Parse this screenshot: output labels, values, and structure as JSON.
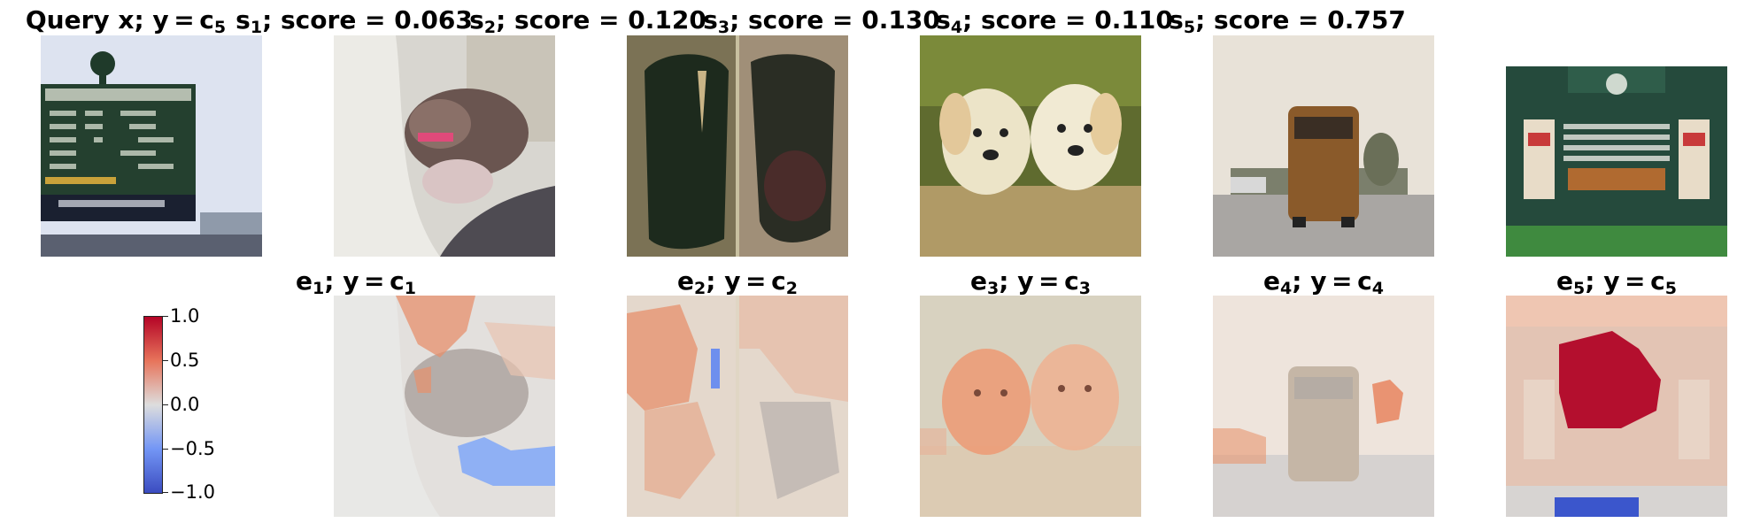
{
  "row1": {
    "query": {
      "prefix": "Query x; y = c",
      "sub": "5"
    },
    "samples": [
      {
        "name": "s",
        "sub": "1",
        "score_text": "; score = 0.063",
        "score": 0.063
      },
      {
        "name": "s",
        "sub": "2",
        "score_text": "; score = 0.120",
        "score": 0.12
      },
      {
        "name": "s",
        "sub": "3",
        "score_text": "; score = 0.130",
        "score": 0.13
      },
      {
        "name": "s",
        "sub": "4",
        "score_text": "; score = 0.110",
        "score": 0.11
      },
      {
        "name": "s",
        "sub": "5",
        "score_text": "; score = 0.757",
        "score": 0.757
      }
    ]
  },
  "row2": {
    "explanations": [
      {
        "name": "e",
        "sub": "1",
        "mid": "; y = c",
        "csub": "1"
      },
      {
        "name": "e",
        "sub": "2",
        "mid": "; y = c",
        "csub": "2"
      },
      {
        "name": "e",
        "sub": "3",
        "mid": "; y = c",
        "csub": "3"
      },
      {
        "name": "e",
        "sub": "4",
        "mid": "; y = c",
        "csub": "4"
      },
      {
        "name": "e",
        "sub": "5",
        "mid": "; y = c",
        "csub": "5"
      }
    ]
  },
  "colorbar": {
    "ticks": [
      "1.0",
      "0.5",
      "0.0",
      "−0.5",
      "−1.0"
    ],
    "colors": {
      "high": "#b40426",
      "mid": "#dddddd",
      "low": "#3b4cc0"
    }
  },
  "images": [
    {
      "icon": "scoreboard-image"
    },
    {
      "icon": "hamster-image"
    },
    {
      "icon": "leaf-image"
    },
    {
      "icon": "puppies-image"
    },
    {
      "icon": "bus-image"
    },
    {
      "icon": "scoreboard-image"
    }
  ]
}
